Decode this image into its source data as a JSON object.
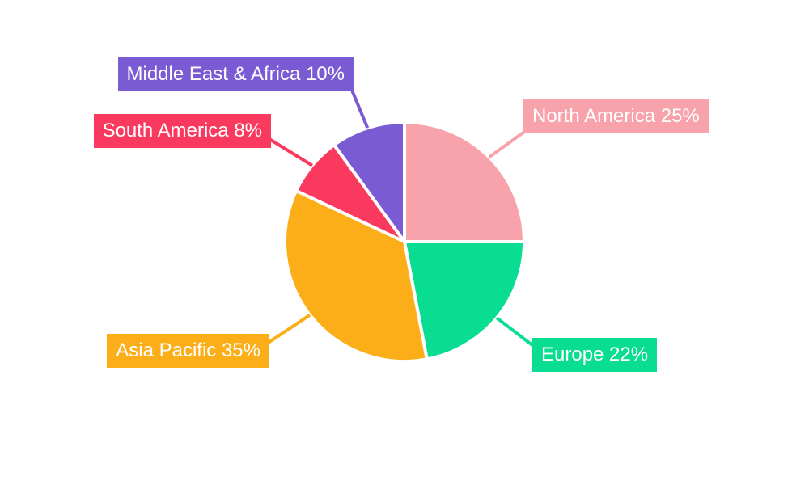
{
  "chart_data": {
    "type": "pie",
    "title": "",
    "start_angle_deg": -90,
    "direction": "clockwise",
    "label_text_color": "#FFFFFF",
    "background_color": "#FFFFFF",
    "gap_color": "#FFFFFF",
    "slices": [
      {
        "label": "North America",
        "value": 25,
        "display": "North America 25%",
        "color": "#F8A3AB"
      },
      {
        "label": "Europe",
        "value": 22,
        "display": "Europe 22%",
        "color": "#08DD92"
      },
      {
        "label": "Asia Pacific",
        "value": 35,
        "display": "Asia Pacific 35%",
        "color": "#FBAE17"
      },
      {
        "label": "South America",
        "value": 8,
        "display": "South America 8%",
        "color": "#F9395E"
      },
      {
        "label": "Middle East & Africa",
        "value": 10,
        "display": "Middle East & Africa 10%",
        "color": "#7A5BD3"
      }
    ]
  }
}
